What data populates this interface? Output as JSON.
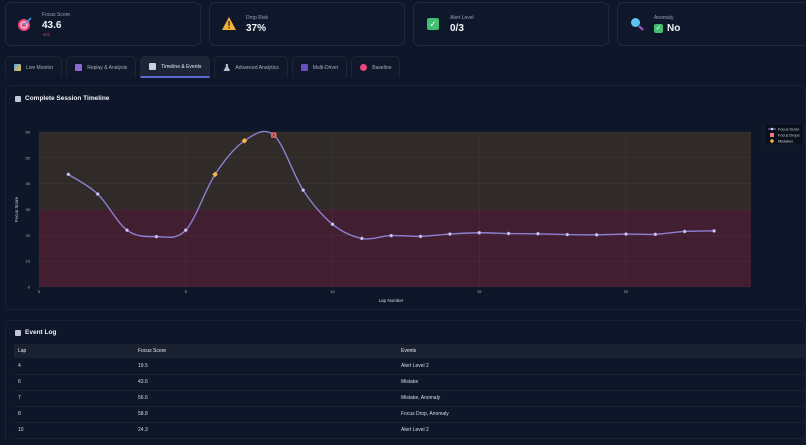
{
  "metrics": [
    {
      "id": "focus",
      "label": "Focus Score",
      "value": "43.6",
      "delta": "-6.6",
      "icon": "target-icon"
    },
    {
      "id": "drop",
      "label": "Drop Risk",
      "value": "37%",
      "icon": "warning-icon"
    },
    {
      "id": "alert",
      "label": "Alert Level",
      "value": "0/3",
      "icon": "check-icon"
    },
    {
      "id": "anomaly",
      "label": "Anomaly",
      "value": "No",
      "icon": "magnifier-icon"
    }
  ],
  "tabs": [
    {
      "label": "Live Monitor",
      "icon": "chart-icon",
      "active": false
    },
    {
      "label": "Replay & Analysis",
      "icon": "film-icon",
      "active": false
    },
    {
      "label": "Timeline & Events",
      "icon": "timeline-icon",
      "active": true
    },
    {
      "label": "Advanced Analytics",
      "icon": "flask-icon",
      "active": false
    },
    {
      "label": "Multi-Driver",
      "icon": "users-icon",
      "active": false
    },
    {
      "label": "Baseline",
      "icon": "target-icon",
      "active": false
    }
  ],
  "timeline": {
    "title": "Complete Session Timeline"
  },
  "chart_data": {
    "type": "line",
    "title": "Complete Session Timeline",
    "xlabel": "Lap Number",
    "ylabel": "Focus Score",
    "xlim": [
      0,
      24
    ],
    "ylim": [
      0,
      60
    ],
    "xticks": [
      0,
      5,
      10,
      15,
      20
    ],
    "yticks": [
      0,
      10,
      20,
      30,
      40,
      50,
      60
    ],
    "grid": true,
    "legend_position": "top-right outside",
    "bands": [
      {
        "from": 0,
        "to": 30,
        "color": "#411f31"
      },
      {
        "from": 30,
        "to": 60,
        "color": "#302b28"
      }
    ],
    "series": [
      {
        "name": "Focus Score",
        "color": "#8f7fd0",
        "x": [
          1,
          2,
          3,
          4,
          5,
          6,
          7,
          8,
          9,
          10,
          11,
          12,
          13,
          14,
          15,
          16,
          17,
          18,
          19,
          20,
          21,
          22,
          23
        ],
        "values": [
          43.6,
          36,
          22,
          19.5,
          22,
          43.6,
          56.6,
          58.8,
          37.5,
          24.3,
          18.8,
          19.9,
          19.6,
          20.5,
          21,
          20.7,
          20.6,
          20.3,
          20.2,
          20.5,
          20.4,
          21.5,
          21.7
        ]
      },
      {
        "name": "Focus Drops",
        "color": "#f07a7a",
        "marker": "x-square",
        "x": [
          8
        ],
        "values": [
          58.8
        ]
      },
      {
        "name": "Mistakes",
        "color": "#f5b942",
        "marker": "diamond",
        "x": [
          6,
          7
        ],
        "values": [
          43.6,
          56.6
        ]
      }
    ]
  },
  "event_log": {
    "title": "Event Log",
    "columns": [
      "Lap",
      "Focus Score",
      "Events"
    ],
    "rows": [
      [
        "4",
        "19.5",
        "Alert Level 2"
      ],
      [
        "6",
        "43.6",
        "Mistake"
      ],
      [
        "7",
        "56.6",
        "Mistake, Anomaly"
      ],
      [
        "8",
        "58.8",
        "Focus Drop, Anomaly"
      ],
      [
        "10",
        "24.3",
        "Alert Level 2"
      ]
    ]
  }
}
